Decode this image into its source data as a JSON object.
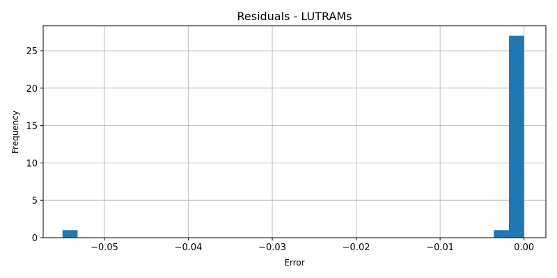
{
  "chart_data": {
    "type": "bar",
    "title": "Residuals - LUTRAMs",
    "xlabel": "Error",
    "ylabel": "Frequency",
    "xlim": [
      -0.0573,
      0.0026
    ],
    "ylim": [
      0,
      28.35
    ],
    "grid": true,
    "bar_color": "#1f77b4",
    "x_ticks": [
      {
        "value": -0.05,
        "label": "−0.05"
      },
      {
        "value": -0.04,
        "label": "−0.04"
      },
      {
        "value": -0.03,
        "label": "−0.03"
      },
      {
        "value": -0.02,
        "label": "−0.02"
      },
      {
        "value": -0.01,
        "label": "−0.01"
      },
      {
        "value": 0.0,
        "label": "0.00"
      }
    ],
    "y_ticks": [
      {
        "value": 0,
        "label": "0"
      },
      {
        "value": 5,
        "label": "5"
      },
      {
        "value": 10,
        "label": "10"
      },
      {
        "value": 15,
        "label": "15"
      },
      {
        "value": 20,
        "label": "20"
      },
      {
        "value": 25,
        "label": "25"
      }
    ],
    "bins": [
      {
        "x0": -0.055,
        "x1": -0.0532,
        "count": 1
      },
      {
        "x0": -0.0036,
        "x1": -0.0018,
        "count": 1
      },
      {
        "x0": -0.0018,
        "x1": 0.0,
        "count": 27
      }
    ]
  }
}
